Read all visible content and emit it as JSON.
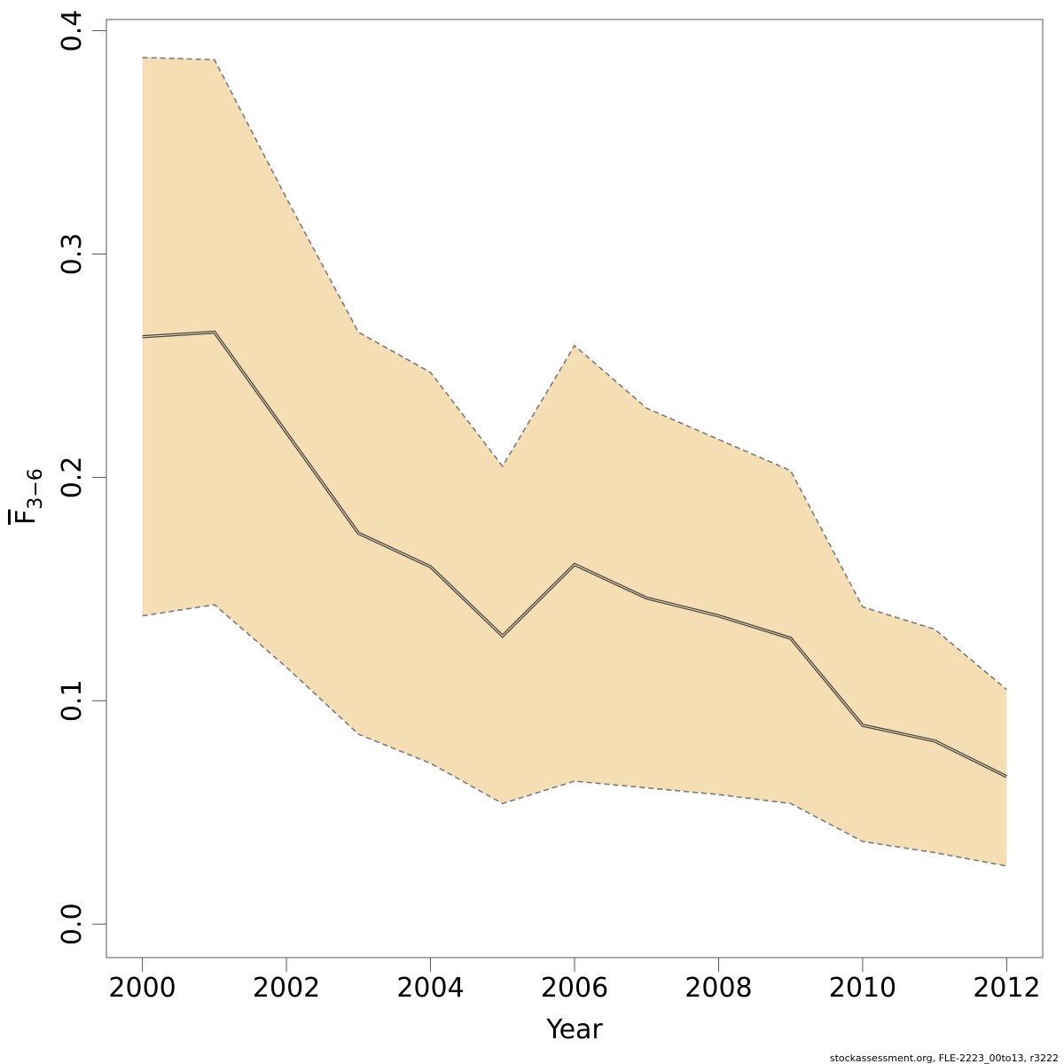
{
  "chart_data": {
    "type": "area",
    "title": "",
    "xlabel": "Year",
    "ylabel_main": "F",
    "ylabel_sub": "3−6",
    "xlim": [
      1999.5,
      2012.5
    ],
    "ylim": [
      -0.015,
      0.405
    ],
    "x_ticks": [
      2000,
      2002,
      2004,
      2006,
      2008,
      2010,
      2012
    ],
    "x_tick_labels": [
      "2000",
      "2002",
      "2004",
      "2006",
      "2008",
      "2010",
      "2012"
    ],
    "y_ticks": [
      0.0,
      0.1,
      0.2,
      0.3,
      0.4
    ],
    "y_tick_labels": [
      "0.0",
      "0.1",
      "0.2",
      "0.3",
      "0.4"
    ],
    "grid": false,
    "legend": "none",
    "x": [
      2000,
      2001,
      2002,
      2003,
      2004,
      2005,
      2006,
      2007,
      2008,
      2009,
      2010,
      2011,
      2012
    ],
    "series": [
      {
        "role": "estimate",
        "values": [
          0.263,
          0.265,
          0.22,
          0.175,
          0.16,
          0.129,
          0.161,
          0.146,
          0.138,
          0.128,
          0.089,
          0.082,
          0.066
        ]
      },
      {
        "role": "upper",
        "values": [
          0.388,
          0.387,
          0.325,
          0.265,
          0.247,
          0.205,
          0.259,
          0.231,
          0.217,
          0.203,
          0.142,
          0.132,
          0.105
        ]
      },
      {
        "role": "lower",
        "values": [
          0.138,
          0.143,
          0.115,
          0.085,
          0.072,
          0.054,
          0.064,
          0.061,
          0.058,
          0.054,
          0.037,
          0.032,
          0.026
        ]
      }
    ],
    "colors": {
      "band_fill": "#f5deb3",
      "estimate_line": "#444444",
      "bound_line": "#7a7a7a",
      "axis": "#555555"
    }
  },
  "footer": {
    "note": "stockassessment.org, FLE-2223_00to13, r3222"
  }
}
